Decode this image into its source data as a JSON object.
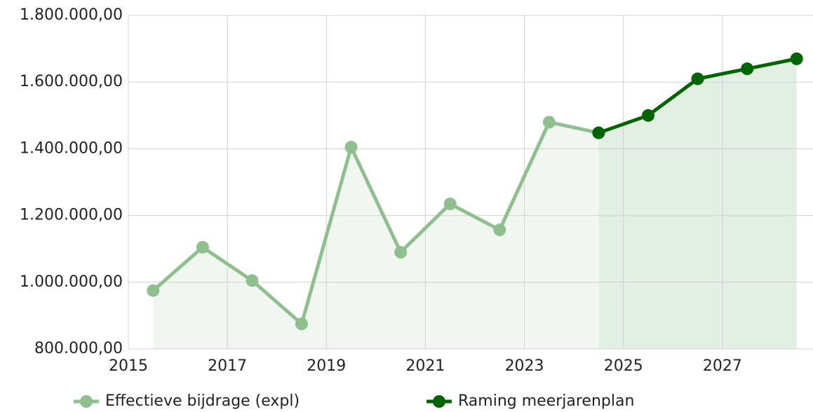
{
  "chart_data": {
    "type": "line",
    "xlim": [
      2015,
      2028.83
    ],
    "xticks": [
      2015,
      2017,
      2019,
      2021,
      2023,
      2025,
      2027
    ],
    "ylim": [
      800000,
      1800000
    ],
    "yticks": [
      {
        "value": 800000,
        "label": "800.000,00"
      },
      {
        "value": 1000000,
        "label": "1.000.000,00"
      },
      {
        "value": 1200000,
        "label": "1.200.000,00"
      },
      {
        "value": 1400000,
        "label": "1.400.000,00"
      },
      {
        "value": 1600000,
        "label": "1.600.000,00"
      },
      {
        "value": 1800000,
        "label": "1.800.000,00"
      }
    ],
    "grid": true,
    "legend": "bottom",
    "series": [
      {
        "name": "Effectieve bijdrage (expl)",
        "color": "#8fbf8f",
        "fill": "#f1f6f1",
        "x": [
          2015.5,
          2016.5,
          2017.5,
          2018.5,
          2019.5,
          2020.5,
          2021.5,
          2022.5,
          2023.5,
          2024.5
        ],
        "values": [
          975000,
          1105000,
          1005000,
          875000,
          1405000,
          1090000,
          1235000,
          1157000,
          1480000,
          1448000
        ]
      },
      {
        "name": "Raming meerjarenplan",
        "color": "#006400",
        "fill": "#e3efe3",
        "x": [
          2024.5,
          2025.5,
          2026.5,
          2027.5,
          2028.5
        ],
        "values": [
          1448000,
          1500000,
          1610000,
          1640000,
          1670000
        ]
      }
    ]
  }
}
